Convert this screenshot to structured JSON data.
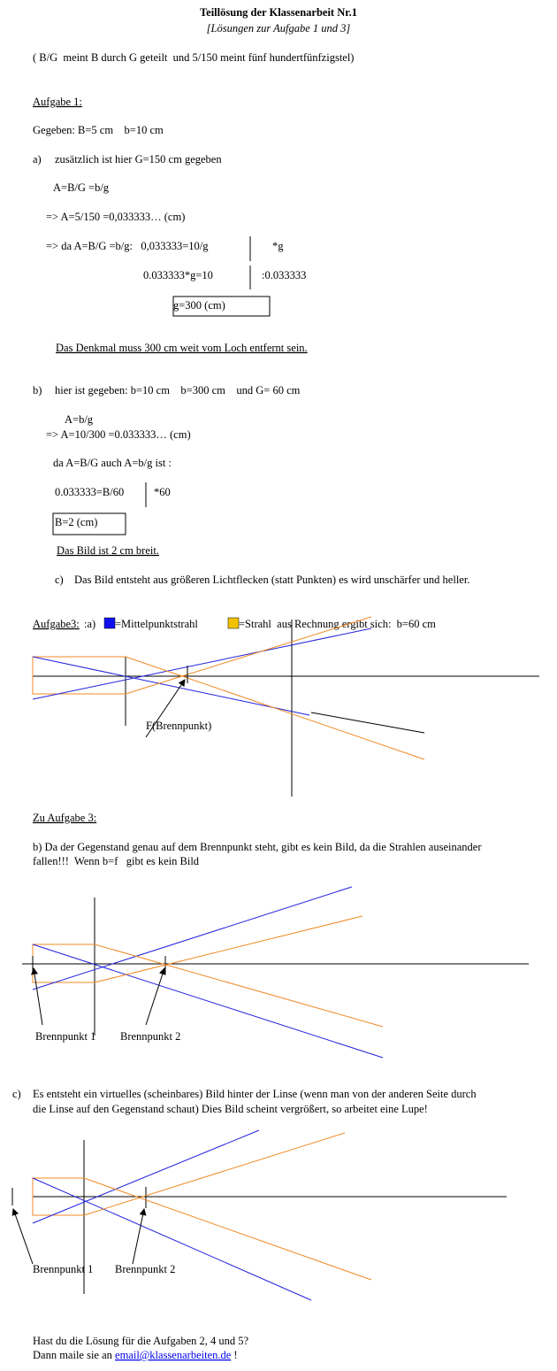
{
  "header": {
    "title": "Teillösung der Klassenarbeit Nr.1",
    "subtitle": "[Lösungen zur Aufgabe 1 und 3]"
  },
  "note": "( B/G  meint B durch G geteilt  und 5/150 meint fünf hundertfünfzigstel)",
  "aufgabe1": {
    "heading": "Aufgabe 1:",
    "given": "Gegeben: B=5 cm    b=10 cm",
    "a": {
      "marker": "a)",
      "text": "zusätzlich ist hier G=150 cm gegeben",
      "lines": [
        "A=B/G =b/g",
        "=> A=5/150 =0,033333… (cm)",
        "=> da A=B/G =b/g:   0,033333=10/g",
        "*g",
        "0.033333*g=10",
        ":0.033333",
        "g=300 (cm)"
      ],
      "answer": "Das Denkmal muss 300 cm weit vom Loch entfernt sein."
    },
    "b": {
      "marker": "b)",
      "text": "hier ist gegeben: b=10 cm    b=300 cm    und G= 60 cm",
      "lines": [
        "A=b/g",
        "=> A=10/300 =0.033333… (cm)",
        "da A=B/G auch A=b/g ist :",
        "0.033333=B/60",
        "*60",
        "B=2 (cm)"
      ],
      "answer": "Das Bild ist 2 cm breit."
    },
    "c": {
      "marker": "c)",
      "text": "Das Bild entsteht aus größeren Lichtflecken (statt Punkten) es wird unschärfer und heller."
    }
  },
  "aufgabe3": {
    "heading": "Aufgabe3:",
    "part": ":a)",
    "legend_blue": "=Mittelpunktstrahl",
    "legend_orange": "=Strahl  aus Rechnung ergibt sich:  b=60 cm",
    "diagram1_label": "F(Brennpunkt)",
    "heading2": "Zu Aufgabe 3:",
    "b_lines": [
      "b) Da der Gegenstand genau auf dem Brennpunkt steht, gibt es kein Bild, da die Strahlen auseinander",
      "fallen!!!  Wenn b=f   gibt es kein Bild"
    ],
    "diagram2_labels": [
      "Brennpunkt 1",
      "Brennpunkt 2"
    ],
    "c_marker": "c)",
    "c_lines": [
      "Es entsteht ein virtuelles (scheinbares) Bild hinter der Linse (wenn man von der anderen Seite durch",
      "die Linse auf den Gegenstand schaut) Dies Bild scheint vergrößert, so arbeitet eine Lupe!"
    ],
    "diagram3_labels": [
      "Brennpunkt 1",
      "Brennpunkt 2"
    ]
  },
  "footer": {
    "question": "Hast du die Lösung für die Aufgaben 2, 4 und 5?",
    "prefix": "Dann maile sie an ",
    "email": "email@klassenarbeiten.de",
    "suffix": " !"
  }
}
